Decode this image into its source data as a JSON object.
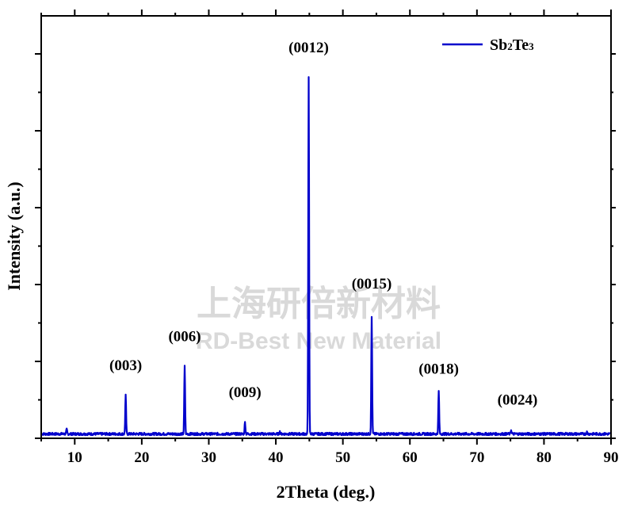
{
  "chart_data": {
    "type": "line",
    "xlabel": "2Theta (deg.)",
    "ylabel": "Intensity (a.u.)",
    "xlim": [
      5,
      90
    ],
    "ylim": [
      0,
      100
    ],
    "x_ticks": [
      "10",
      "20",
      "30",
      "40",
      "50",
      "60",
      "70",
      "80",
      "90"
    ],
    "y_tick_labels": "none",
    "grid": false,
    "legend": {
      "position": "top-right",
      "entries": [
        "Sb2Te3"
      ]
    },
    "series": [
      {
        "name": "Sb2Te3",
        "color": "#0000cc",
        "baseline": 1.2,
        "peaks": [
          {
            "x": 8.8,
            "y": 2.4
          },
          {
            "x": 17.6,
            "y": 11.8
          },
          {
            "x": 26.4,
            "y": 19.8
          },
          {
            "x": 35.4,
            "y": 4.4
          },
          {
            "x": 40.6,
            "y": 1.8
          },
          {
            "x": 44.9,
            "y": 100
          },
          {
            "x": 54.3,
            "y": 33.5
          },
          {
            "x": 64.3,
            "y": 13.0
          },
          {
            "x": 75.1,
            "y": 2.3
          },
          {
            "x": 86.4,
            "y": 1.7
          }
        ]
      }
    ],
    "annotations": [
      {
        "text": "(003)",
        "x": 17.6
      },
      {
        "text": "(006)",
        "x": 26.4
      },
      {
        "text": "(009)",
        "x": 35.4
      },
      {
        "text": "(0012)",
        "x": 44.9
      },
      {
        "text": "(0015)",
        "x": 54.3
      },
      {
        "text": "(0018)",
        "x": 64.3
      },
      {
        "text": "(0024)",
        "x": 75.1
      }
    ]
  },
  "watermark": {
    "line1": "上海研倍新材料",
    "line2": "RD-Best New Material"
  }
}
